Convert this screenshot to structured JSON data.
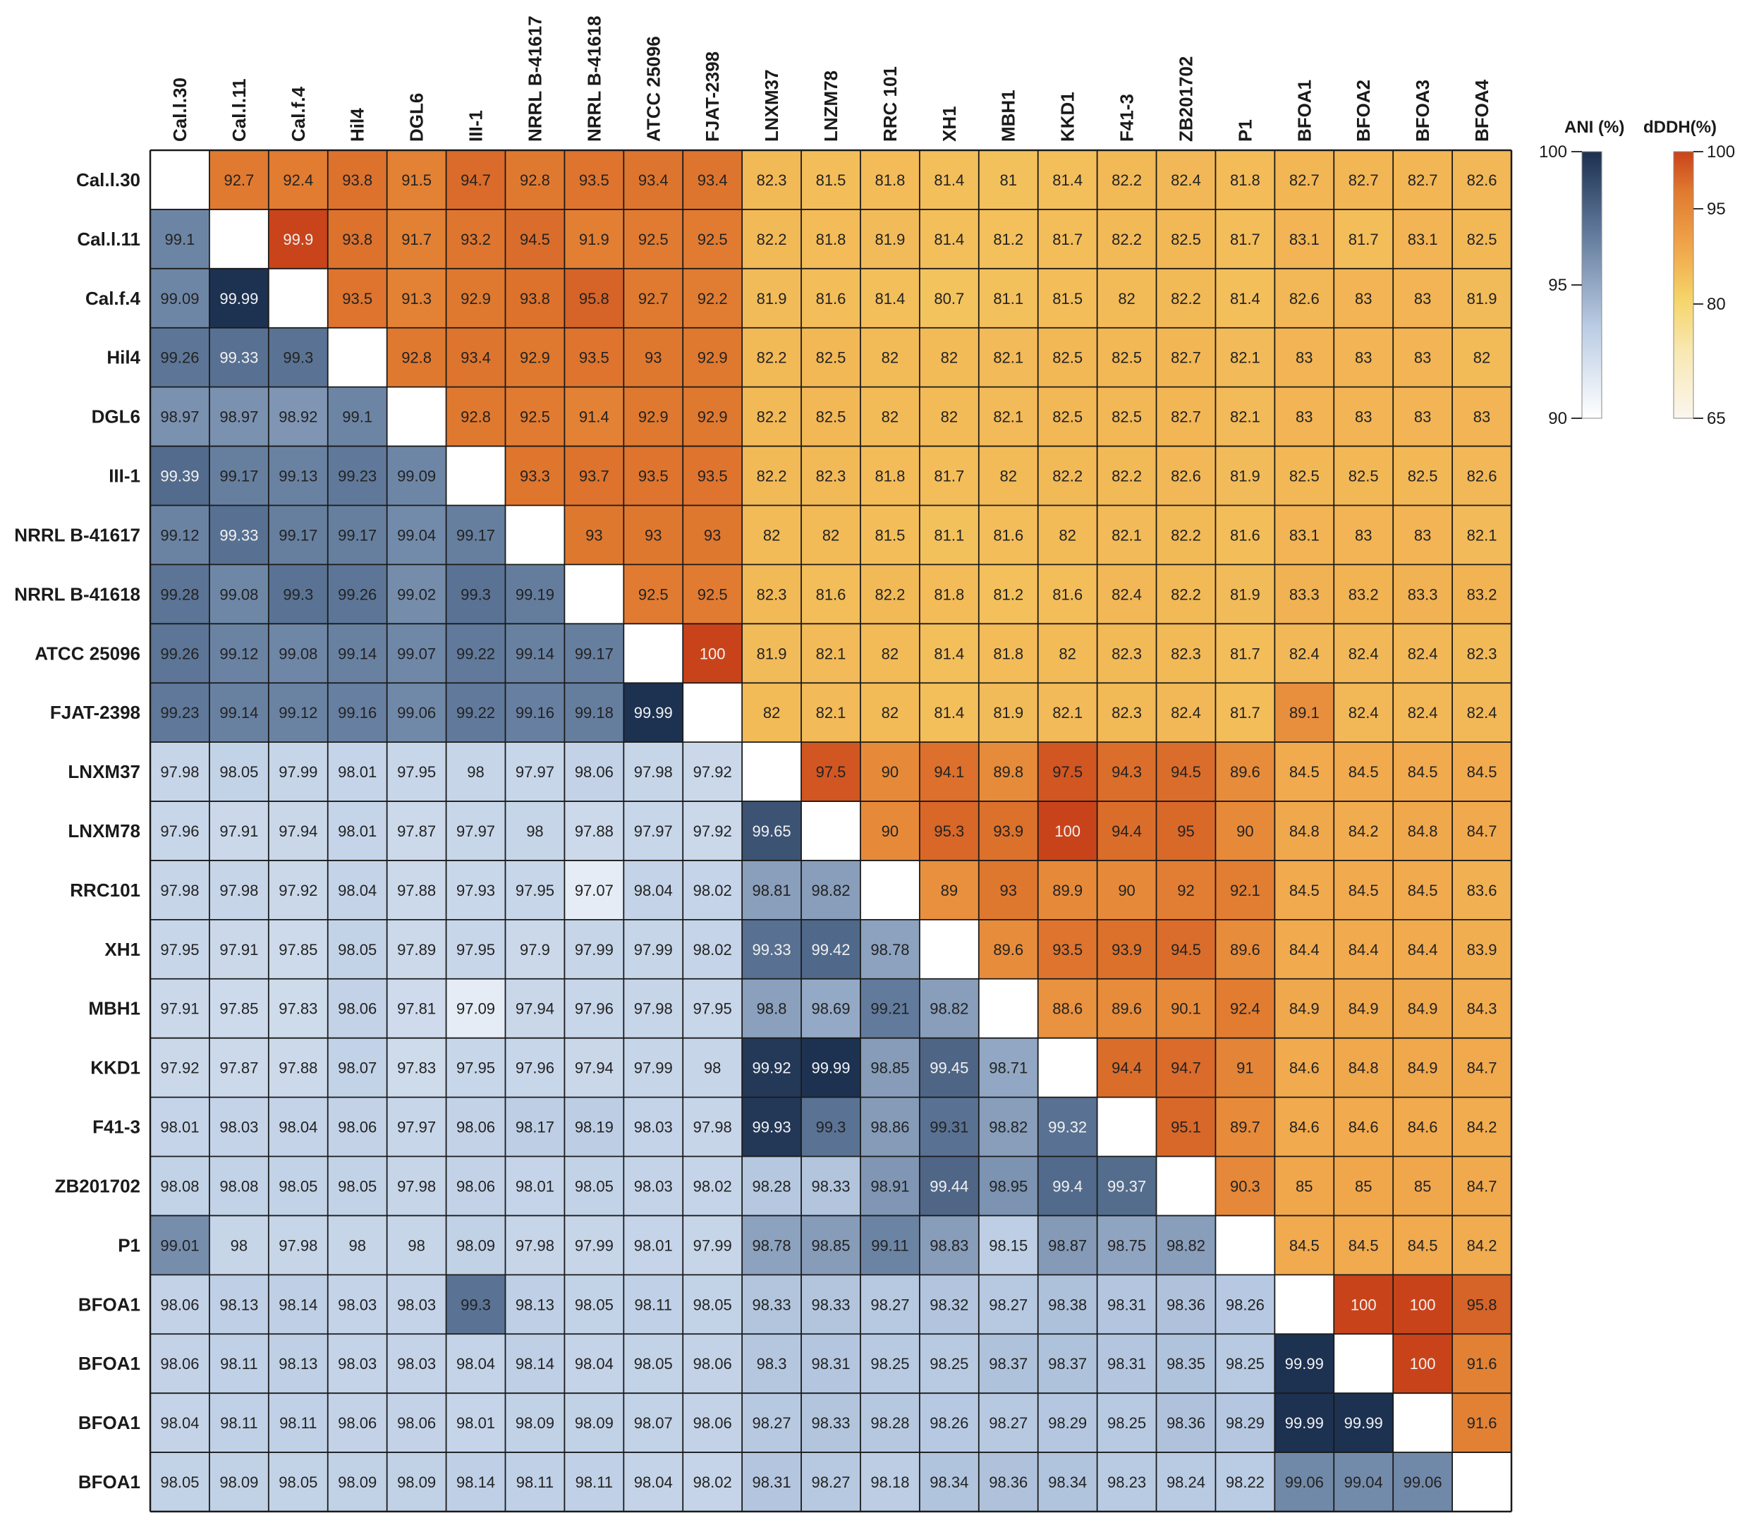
{
  "chart_data": {
    "type": "heatmap",
    "description_lower": "ANI (%)",
    "description_upper": "dDDH(%)",
    "col_labels": [
      "Cal.l.30",
      "Cal.l.11",
      "Cal.f.4",
      "Hil4",
      "DGL6",
      "III-1",
      "NRRL B-41617",
      "NRRL B-41618",
      "ATCC 25096",
      "FJAT-2398",
      "LNXM37",
      "LNZM78",
      "RRC 101",
      "XH1",
      "MBH1",
      "KKD1",
      "F41-3",
      "ZB201702",
      "P1",
      "BFOA1",
      "BFOA2",
      "BFOA3",
      "BFOA4"
    ],
    "row_labels": [
      "Cal.l.30",
      "Cal.l.11",
      "Cal.f.4",
      "Hil4",
      "DGL6",
      "III-1",
      "NRRL B-41617",
      "NRRL B-41618",
      "ATCC 25096",
      "FJAT-2398",
      "LNXM37",
      "LNXM78",
      "RRC101",
      "XH1",
      "MBH1",
      "KKD1",
      "F41-3",
      "ZB201702",
      "P1",
      "BFOA1",
      "BFOA1",
      "BFOA1",
      "BFOA1"
    ],
    "matrix": [
      [
        "",
        "92.7",
        "92.4",
        "93.8",
        "91.5",
        "94.7",
        "92.8",
        "93.5",
        "93.4",
        "93.4",
        "82.3",
        "81.5",
        "81.8",
        "81.4",
        "81",
        "81.4",
        "82.2",
        "82.4",
        "81.8",
        "82.7",
        "82.7",
        "82.7",
        "82.6"
      ],
      [
        "99.1",
        "",
        "99.9",
        "93.8",
        "91.7",
        "93.2",
        "94.5",
        "91.9",
        "92.5",
        "92.5",
        "82.2",
        "81.8",
        "81.9",
        "81.4",
        "81.2",
        "81.7",
        "82.2",
        "82.5",
        "81.7",
        "83.1",
        "81.7",
        "83.1",
        "82.5"
      ],
      [
        "99.09",
        "99.99",
        "",
        "93.5",
        "91.3",
        "92.9",
        "93.8",
        "95.8",
        "92.7",
        "92.2",
        "81.9",
        "81.6",
        "81.4",
        "80.7",
        "81.1",
        "81.5",
        "82",
        "82.2",
        "81.4",
        "82.6",
        "83",
        "83",
        "81.9"
      ],
      [
        "99.26",
        "99.33",
        "99.3",
        "",
        "92.8",
        "93.4",
        "92.9",
        "93.5",
        "93",
        "92.9",
        "82.2",
        "82.5",
        "82",
        "82",
        "82.1",
        "82.5",
        "82.5",
        "82.7",
        "82.1",
        "83",
        "83",
        "83",
        "82"
      ],
      [
        "98.97",
        "98.97",
        "98.92",
        "99.1",
        "",
        "92.8",
        "92.5",
        "91.4",
        "92.9",
        "92.9",
        "82.2",
        "82.5",
        "82",
        "82",
        "82.1",
        "82.5",
        "82.5",
        "82.7",
        "82.1",
        "83",
        "83",
        "83",
        "83"
      ],
      [
        "99.39",
        "99.17",
        "99.13",
        "99.23",
        "99.09",
        "",
        "93.3",
        "93.7",
        "93.5",
        "93.5",
        "82.2",
        "82.3",
        "81.8",
        "81.7",
        "82",
        "82.2",
        "82.2",
        "82.6",
        "81.9",
        "82.5",
        "82.5",
        "82.5",
        "82.6"
      ],
      [
        "99.12",
        "99.33",
        "99.17",
        "99.17",
        "99.04",
        "99.17",
        "",
        "93",
        "93",
        "93",
        "82",
        "82",
        "81.5",
        "81.1",
        "81.6",
        "82",
        "82.1",
        "82.2",
        "81.6",
        "83.1",
        "83",
        "83",
        "82.1"
      ],
      [
        "99.28",
        "99.08",
        "99.3",
        "99.26",
        "99.02",
        "99.3",
        "99.19",
        "",
        "92.5",
        "92.5",
        "82.3",
        "81.6",
        "82.2",
        "81.8",
        "81.2",
        "81.6",
        "82.4",
        "82.2",
        "81.9",
        "83.3",
        "83.2",
        "83.3",
        "83.2"
      ],
      [
        "99.26",
        "99.12",
        "99.08",
        "99.14",
        "99.07",
        "99.22",
        "99.14",
        "99.17",
        "",
        "100",
        "81.9",
        "82.1",
        "82",
        "81.4",
        "81.8",
        "82",
        "82.3",
        "82.3",
        "81.7",
        "82.4",
        "82.4",
        "82.4",
        "82.3"
      ],
      [
        "99.23",
        "99.14",
        "99.12",
        "99.16",
        "99.06",
        "99.22",
        "99.16",
        "99.18",
        "99.99",
        "",
        "82",
        "82.1",
        "82",
        "81.4",
        "81.9",
        "82.1",
        "82.3",
        "82.4",
        "81.7",
        "89.1",
        "82.4",
        "82.4",
        "82.4"
      ],
      [
        "97.98",
        "98.05",
        "97.99",
        "98.01",
        "97.95",
        "98",
        "97.97",
        "98.06",
        "97.98",
        "97.92",
        "",
        "97.5",
        "90",
        "94.1",
        "89.8",
        "97.5",
        "94.3",
        "94.5",
        "89.6",
        "84.5",
        "84.5",
        "84.5",
        "84.5"
      ],
      [
        "97.96",
        "97.91",
        "97.94",
        "98.01",
        "97.87",
        "97.97",
        "98",
        "97.88",
        "97.97",
        "97.92",
        "99.65",
        "",
        "90",
        "95.3",
        "93.9",
        "100",
        "94.4",
        "95",
        "90",
        "84.8",
        "84.2",
        "84.8",
        "84.7"
      ],
      [
        "97.98",
        "97.98",
        "97.92",
        "98.04",
        "97.88",
        "97.93",
        "97.95",
        "97.07",
        "98.04",
        "98.02",
        "98.81",
        "98.82",
        "",
        "89",
        "93",
        "89.9",
        "90",
        "92",
        "92.1",
        "84.5",
        "84.5",
        "84.5",
        "83.6"
      ],
      [
        "97.95",
        "97.91",
        "97.85",
        "98.05",
        "97.89",
        "97.95",
        "97.9",
        "97.99",
        "97.99",
        "98.02",
        "99.33",
        "99.42",
        "98.78",
        "",
        "89.6",
        "93.5",
        "93.9",
        "94.5",
        "89.6",
        "84.4",
        "84.4",
        "84.4",
        "83.9"
      ],
      [
        "97.91",
        "97.85",
        "97.83",
        "98.06",
        "97.81",
        "97.09",
        "97.94",
        "97.96",
        "97.98",
        "97.95",
        "98.8",
        "98.69",
        "99.21",
        "98.82",
        "",
        "88.6",
        "89.6",
        "90.1",
        "92.4",
        "84.9",
        "84.9",
        "84.9",
        "84.3"
      ],
      [
        "97.92",
        "97.87",
        "97.88",
        "98.07",
        "97.83",
        "97.95",
        "97.96",
        "97.94",
        "97.99",
        "98",
        "99.92",
        "99.99",
        "98.85",
        "99.45",
        "98.71",
        "",
        "94.4",
        "94.7",
        "91",
        "84.6",
        "84.8",
        "84.9",
        "84.7"
      ],
      [
        "98.01",
        "98.03",
        "98.04",
        "98.06",
        "97.97",
        "98.06",
        "98.17",
        "98.19",
        "98.03",
        "97.98",
        "99.93",
        "99.3",
        "98.86",
        "99.31",
        "98.82",
        "99.32",
        "",
        "95.1",
        "89.7",
        "84.6",
        "84.6",
        "84.6",
        "84.2"
      ],
      [
        "98.08",
        "98.08",
        "98.05",
        "98.05",
        "97.98",
        "98.06",
        "98.01",
        "98.05",
        "98.03",
        "98.02",
        "98.28",
        "98.33",
        "98.91",
        "99.44",
        "98.95",
        "99.4",
        "99.37",
        "",
        "90.3",
        "85",
        "85",
        "85",
        "84.7"
      ],
      [
        "99.01",
        "98",
        "97.98",
        "98",
        "98",
        "98.09",
        "97.98",
        "97.99",
        "98.01",
        "97.99",
        "98.78",
        "98.85",
        "99.11",
        "98.83",
        "98.15",
        "98.87",
        "98.75",
        "98.82",
        "",
        "84.5",
        "84.5",
        "84.5",
        "84.2"
      ],
      [
        "98.06",
        "98.13",
        "98.14",
        "98.03",
        "98.03",
        "99.3",
        "98.13",
        "98.05",
        "98.11",
        "98.05",
        "98.33",
        "98.33",
        "98.27",
        "98.32",
        "98.27",
        "98.38",
        "98.31",
        "98.36",
        "98.26",
        "",
        "100",
        "100",
        "95.8"
      ],
      [
        "98.06",
        "98.11",
        "98.13",
        "98.03",
        "98.03",
        "98.04",
        "98.14",
        "98.04",
        "98.05",
        "98.06",
        "98.3",
        "98.31",
        "98.25",
        "98.25",
        "98.37",
        "98.37",
        "98.31",
        "98.35",
        "98.25",
        "99.99",
        "",
        "100",
        "91.6"
      ],
      [
        "98.04",
        "98.11",
        "98.11",
        "98.06",
        "98.06",
        "98.01",
        "98.09",
        "98.09",
        "98.07",
        "98.06",
        "98.27",
        "98.33",
        "98.28",
        "98.26",
        "98.27",
        "98.29",
        "98.25",
        "98.36",
        "98.29",
        "99.99",
        "99.99",
        "",
        "91.6"
      ],
      [
        "98.05",
        "98.09",
        "98.05",
        "98.09",
        "98.09",
        "98.14",
        "98.11",
        "98.11",
        "98.04",
        "98.02",
        "98.31",
        "98.27",
        "98.18",
        "98.34",
        "98.36",
        "98.34",
        "98.23",
        "98.24",
        "98.22",
        "99.06",
        "99.04",
        "99.06",
        ""
      ]
    ],
    "legend_ani": {
      "title": "ANI (%)",
      "ticks": [
        "100",
        "95",
        "90"
      ],
      "range": [
        90,
        100
      ],
      "colors": [
        "#ffffff",
        "#b9cbe3",
        "#60799a",
        "#1c3050"
      ]
    },
    "legend_ddh": {
      "title": "dDDH(%)",
      "ticks": [
        "100",
        "95",
        "80",
        "65"
      ],
      "range": [
        65,
        100
      ],
      "colors": [
        "#fbf6ee",
        "#f8e8b3",
        "#f5d468",
        "#f0a44a",
        "#e07a30",
        "#c9431a"
      ]
    }
  }
}
